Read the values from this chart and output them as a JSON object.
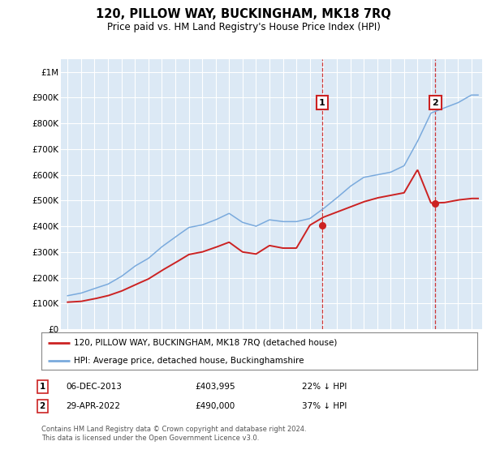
{
  "title": "120, PILLOW WAY, BUCKINGHAM, MK18 7RQ",
  "subtitle": "Price paid vs. HM Land Registry's House Price Index (HPI)",
  "legend_line1": "120, PILLOW WAY, BUCKINGHAM, MK18 7RQ (detached house)",
  "legend_line2": "HPI: Average price, detached house, Buckinghamshire",
  "footnote": "Contains HM Land Registry data © Crown copyright and database right 2024.\nThis data is licensed under the Open Government Licence v3.0.",
  "point1_date": "06-DEC-2013",
  "point1_price": "£403,995",
  "point1_hpi": "22% ↓ HPI",
  "point1_x": 2013.92,
  "point1_y": 403995,
  "point2_date": "29-APR-2022",
  "point2_price": "£490,000",
  "point2_hpi": "37% ↓ HPI",
  "point2_x": 2022.33,
  "point2_y": 490000,
  "hpi_color": "#7aaadd",
  "price_color": "#cc2222",
  "plot_bg_color": "#dce9f5",
  "ylim": [
    0,
    1050000
  ],
  "yticks": [
    0,
    100000,
    200000,
    300000,
    400000,
    500000,
    600000,
    700000,
    800000,
    900000,
    1000000
  ],
  "ytick_labels": [
    "£0",
    "£100K",
    "£200K",
    "£300K",
    "£400K",
    "£500K",
    "£600K",
    "£700K",
    "£800K",
    "£900K",
    "£1M"
  ],
  "xlim_start": 1994.5,
  "xlim_end": 2025.8,
  "hpi_years": [
    1995,
    1996,
    1997,
    1998,
    1999,
    2000,
    2001,
    2002,
    2003,
    2004,
    2005,
    2006,
    2007,
    2008,
    2009,
    2010,
    2011,
    2012,
    2013,
    2014,
    2015,
    2016,
    2017,
    2018,
    2019,
    2020,
    2021,
    2022,
    2023,
    2024,
    2025
  ],
  "hpi_values": [
    130000,
    140000,
    158000,
    175000,
    205000,
    245000,
    275000,
    320000,
    358000,
    395000,
    405000,
    425000,
    450000,
    415000,
    400000,
    425000,
    418000,
    418000,
    430000,
    468000,
    510000,
    555000,
    590000,
    600000,
    610000,
    635000,
    730000,
    840000,
    860000,
    880000,
    910000
  ],
  "red_values": [
    105000,
    108000,
    118000,
    130000,
    148000,
    172000,
    195000,
    228000,
    258000,
    290000,
    300000,
    318000,
    338000,
    300000,
    292000,
    325000,
    315000,
    315000,
    403995,
    435000,
    455000,
    475000,
    495000,
    510000,
    520000,
    530000,
    620000,
    490000,
    492000,
    502000,
    508000
  ]
}
